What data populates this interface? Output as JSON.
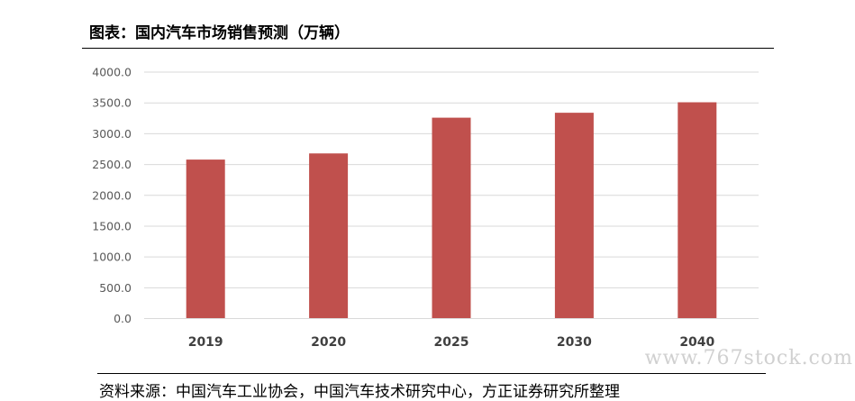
{
  "header": {
    "title": "图表：国内汽车市场销售预测（万辆）"
  },
  "footer": {
    "source": "资料来源：中国汽车工业协会，中国汽车技术研究中心，方正证券研究所整理"
  },
  "watermark": "www.767stock.com",
  "colors": {
    "bar": "#c0504d",
    "grid": "#d9d9d9",
    "tick_text": "#595959",
    "category_text": "#404040"
  },
  "chart_data": {
    "type": "bar",
    "categories": [
      "2019",
      "2020",
      "2025",
      "2030",
      "2040"
    ],
    "values": [
      2580,
      2680,
      3260,
      3340,
      3510
    ],
    "ylim": [
      0,
      4000
    ],
    "yticks": [
      "0.0",
      "500.0",
      "1000.0",
      "1500.0",
      "2000.0",
      "2500.0",
      "3000.0",
      "3500.0",
      "4000.0"
    ],
    "grid": true,
    "title": "",
    "xlabel": "",
    "ylabel": ""
  }
}
